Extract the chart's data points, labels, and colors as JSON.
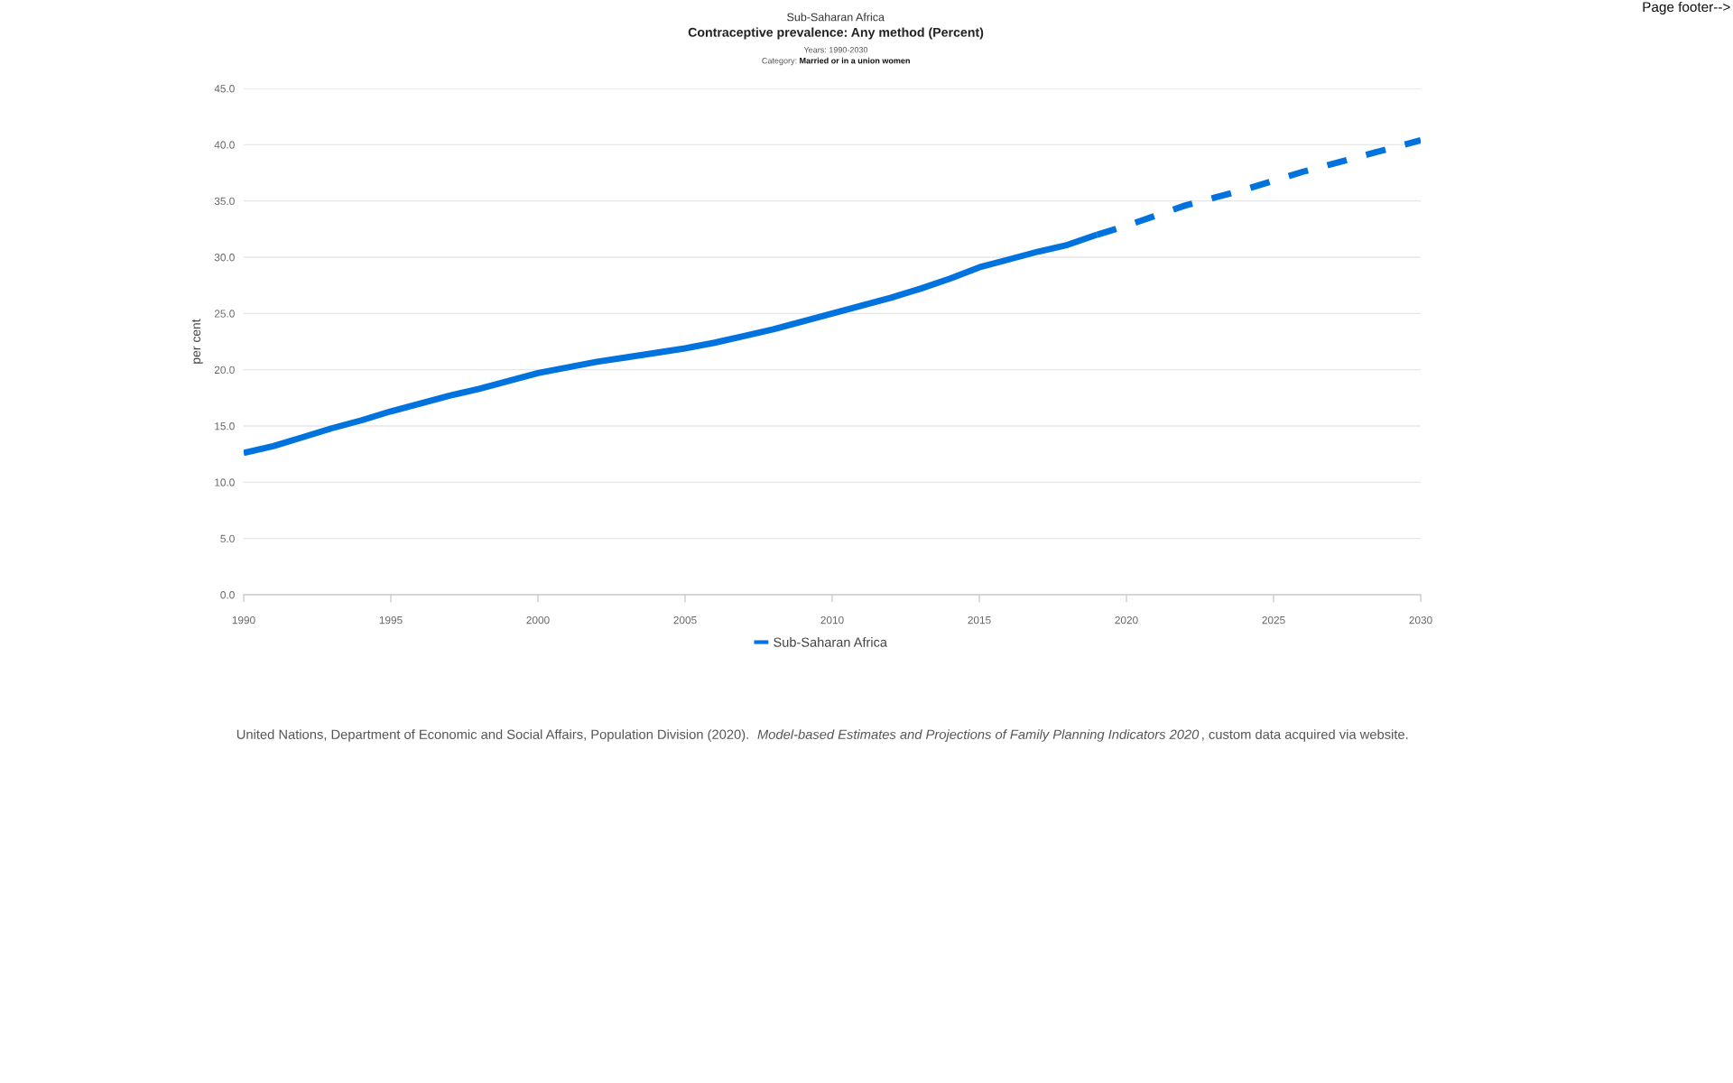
{
  "chart_data": {
    "type": "line",
    "title": "Contraceptive prevalence: Any method (Percent)",
    "subtitle": "Years: 1990-2030",
    "ylabel": "per cent",
    "annotations": [
      "Sub-Saharan Africa",
      "Category:",
      "Married or in a union women",
      "United Nations, Department of Economic and Social Affairs, Population Division (2020).",
      "Model-based Estimates and Projections of Family Planning Indicators 2020",
      ", custom data acquired via website.",
      "Page footer-->"
    ],
    "series": [
      {
        "name": "Sub-Saharan Africa",
        "color": "#0073de",
        "line_style": "solid",
        "x": [
          1990,
          1991,
          1992,
          1993,
          1994,
          1995,
          1996,
          1997,
          1998,
          1999,
          2000,
          2001,
          2002,
          2003,
          2004,
          2005,
          2006,
          2007,
          2008,
          2009,
          2010,
          2011,
          2012,
          2013,
          2014,
          2015,
          2016,
          2017,
          2018,
          2019
        ],
        "values": [
          12.6,
          13.2,
          14.0,
          14.8,
          15.5,
          16.3,
          17.0,
          17.7,
          18.3,
          19.0,
          19.7,
          20.2,
          20.7,
          21.1,
          21.5,
          21.9,
          22.4,
          23.0,
          23.6,
          24.3,
          25.0,
          25.7,
          26.4,
          27.2,
          28.1,
          29.1,
          29.8,
          30.5,
          31.1,
          32.0
        ]
      },
      {
        "color": "#0073de",
        "line_style": "dashed",
        "x": [
          2019,
          2020,
          2021,
          2022,
          2023,
          2024,
          2025,
          2026,
          2027,
          2028,
          2029,
          2030
        ],
        "values": [
          32.0,
          32.8,
          33.7,
          34.6,
          35.3,
          36.0,
          36.8,
          37.6,
          38.3,
          39.0,
          39.7,
          40.4
        ]
      }
    ],
    "xlim": [
      1990,
      2030
    ],
    "xticks": [
      1990,
      1995,
      2000,
      2005,
      2010,
      2015,
      2020,
      2025,
      2030
    ],
    "ylim": [
      0,
      45
    ],
    "yticks": [
      {
        "value": 0,
        "label": "0.0"
      },
      {
        "value": 5,
        "label": "5.0"
      },
      {
        "value": 10,
        "label": "10.0"
      },
      {
        "value": 15,
        "label": "15.0"
      },
      {
        "value": 20,
        "label": "20.0"
      },
      {
        "value": 25,
        "label": "25.0"
      },
      {
        "value": 30,
        "label": "30.0"
      },
      {
        "value": 35,
        "label": "35.0"
      },
      {
        "value": 40,
        "label": "40.0"
      },
      {
        "value": 45,
        "label": "45.0"
      }
    ],
    "grid": "y",
    "legend": "bottom"
  }
}
